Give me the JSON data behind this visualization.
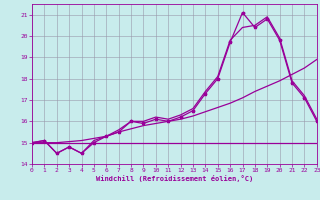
{
  "xlabel": "Windchill (Refroidissement éolien,°C)",
  "bg_color": "#c8ecec",
  "line_color": "#990099",
  "grid_color": "#9999aa",
  "xmin": 0,
  "xmax": 23,
  "ymin": 14,
  "ymax": 21.5,
  "yticks": [
    14,
    15,
    16,
    17,
    18,
    19,
    20,
    21
  ],
  "xticks": [
    0,
    1,
    2,
    3,
    4,
    5,
    6,
    7,
    8,
    9,
    10,
    11,
    12,
    13,
    14,
    15,
    16,
    17,
    18,
    19,
    20,
    21,
    22,
    23
  ],
  "line1_x": [
    0,
    1,
    2,
    3,
    4,
    5,
    6,
    7,
    8,
    9,
    10,
    11,
    12,
    13,
    14,
    15,
    16,
    17,
    18,
    19,
    20,
    21,
    22,
    23
  ],
  "line1_y": [
    15.0,
    15.1,
    14.5,
    14.8,
    14.5,
    15.0,
    15.3,
    15.5,
    16.0,
    15.9,
    16.1,
    16.0,
    16.2,
    16.5,
    17.3,
    18.0,
    19.7,
    21.1,
    20.4,
    20.8,
    19.8,
    17.8,
    17.1,
    16.0
  ],
  "line2_x": [
    0,
    1,
    2,
    3,
    4,
    5,
    6,
    7,
    8,
    9,
    10,
    11,
    12,
    13,
    14,
    15,
    16,
    17,
    18,
    19,
    20,
    21,
    22,
    23
  ],
  "line2_y": [
    15.0,
    15.1,
    14.5,
    14.8,
    14.5,
    15.1,
    15.3,
    15.6,
    16.0,
    16.0,
    16.2,
    16.1,
    16.3,
    16.6,
    17.4,
    18.1,
    19.8,
    20.4,
    20.5,
    20.9,
    19.9,
    17.9,
    17.2,
    16.1
  ],
  "line3_x": [
    0,
    1,
    2,
    3,
    4,
    5,
    6,
    7,
    8,
    9,
    10,
    11,
    12,
    13,
    14,
    15,
    16,
    17,
    18,
    19,
    20,
    21,
    22,
    23
  ],
  "line3_y": [
    15.0,
    15.0,
    15.0,
    15.05,
    15.1,
    15.2,
    15.3,
    15.5,
    15.65,
    15.8,
    15.9,
    16.0,
    16.1,
    16.25,
    16.45,
    16.65,
    16.85,
    17.1,
    17.4,
    17.65,
    17.9,
    18.2,
    18.5,
    18.9
  ],
  "flat_x": [
    0,
    1,
    2,
    3,
    4,
    5,
    6,
    7,
    8,
    9,
    10,
    11,
    12,
    13,
    14,
    15,
    16,
    17,
    18,
    19,
    20,
    21,
    22,
    23
  ],
  "flat_y": [
    15.0,
    15.0,
    15.0,
    15.0,
    15.0,
    15.0,
    15.0,
    15.0,
    15.0,
    15.0,
    15.0,
    15.0,
    15.0,
    15.0,
    15.0,
    15.0,
    15.0,
    15.0,
    15.0,
    15.0,
    15.0,
    15.0,
    15.0,
    15.0
  ]
}
